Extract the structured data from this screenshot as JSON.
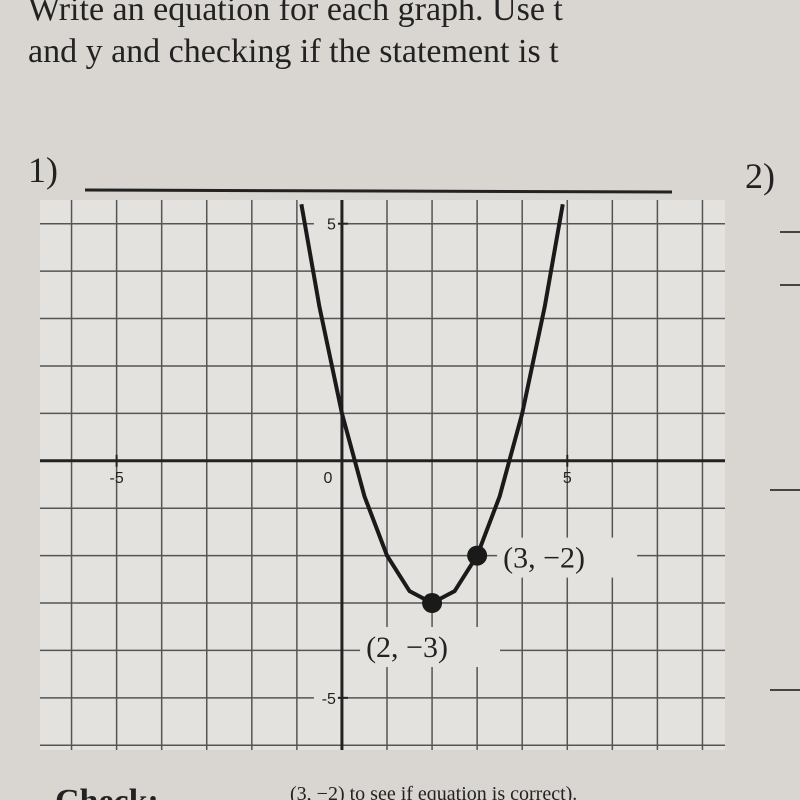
{
  "header": {
    "line1": "Write an equation for each graph. Use t",
    "line2": "and y and checking if the statement is t"
  },
  "problem1": "1)",
  "problem2": "2)",
  "footer": {
    "check": "Check:",
    "text": "(3, −2) to see if equation is correct)."
  },
  "chart_data": {
    "type": "line",
    "series": [
      {
        "name": "parabola",
        "color": "#1a1a1a",
        "x": [
          -0.9,
          -0.5,
          0,
          0.5,
          1,
          1.5,
          2,
          2.5,
          3,
          3.5,
          4,
          4.5,
          4.9
        ],
        "values": [
          5.41,
          3.25,
          1,
          -0.75,
          -2,
          -2.75,
          -3,
          -2.75,
          -2,
          -0.75,
          1,
          3.25,
          5.41
        ]
      },
      {
        "name": "points",
        "color": "#1a1a1a",
        "x": [
          2,
          3
        ],
        "values": [
          -3,
          -2
        ],
        "value_labels": [
          "(2, −3)",
          "(3, −2)"
        ]
      }
    ],
    "origin_label": "0",
    "xlim": [
      -6.7,
      8.5
    ],
    "ylim": [
      -6.1,
      5.5
    ],
    "xticks": [
      -5,
      5
    ],
    "yticks": [
      -5,
      5
    ],
    "grid": true
  }
}
